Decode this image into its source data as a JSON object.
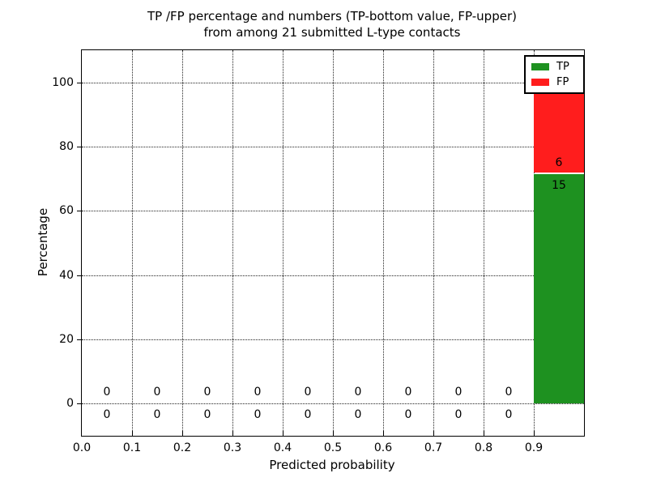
{
  "title": {
    "line1": "TP /FP percentage and numbers (TP-bottom value, FP-upper)",
    "line2": "from among 21 submitted L-type contacts"
  },
  "axes": {
    "xlabel": "Predicted probability",
    "ylabel": "Percentage"
  },
  "colors": {
    "tp_green": "#1e9120",
    "fp_red": "#ff1d1d",
    "grid": "#222222",
    "text": "#000000",
    "background": "#ffffff"
  },
  "chart_data": {
    "type": "bar",
    "stacked": true,
    "title": "TP /FP percentage and numbers (TP-bottom value, FP-upper) from among 21 submitted L-type contacts",
    "xlabel": "Predicted probability",
    "ylabel": "Percentage",
    "total_submitted_contacts": 21,
    "bin_width": 0.1,
    "bin_centers": [
      0.05,
      0.15,
      0.25,
      0.35,
      0.45,
      0.55,
      0.65,
      0.75,
      0.85,
      0.95
    ],
    "series": [
      {
        "name": "TP",
        "color": "#1e9120",
        "counts": [
          0,
          0,
          0,
          0,
          0,
          0,
          0,
          0,
          0,
          15
        ],
        "percent_of_total": [
          0,
          0,
          0,
          0,
          0,
          0,
          0,
          0,
          0,
          71.43
        ]
      },
      {
        "name": "FP",
        "color": "#ff1d1d",
        "counts": [
          0,
          0,
          0,
          0,
          0,
          0,
          0,
          0,
          0,
          6
        ],
        "percent_of_total": [
          0,
          0,
          0,
          0,
          0,
          0,
          0,
          0,
          0,
          28.57
        ]
      }
    ],
    "xlim": [
      0,
      1
    ],
    "ylim": [
      -10,
      110
    ],
    "xticks": [
      0,
      0.1,
      0.2,
      0.3,
      0.4,
      0.5,
      0.6,
      0.7,
      0.8,
      0.9
    ],
    "yticks": [
      0,
      20,
      40,
      60,
      80,
      100
    ],
    "grid": "dotted",
    "legend_position": "upper right",
    "count_label_offset_percent": 3.5
  }
}
